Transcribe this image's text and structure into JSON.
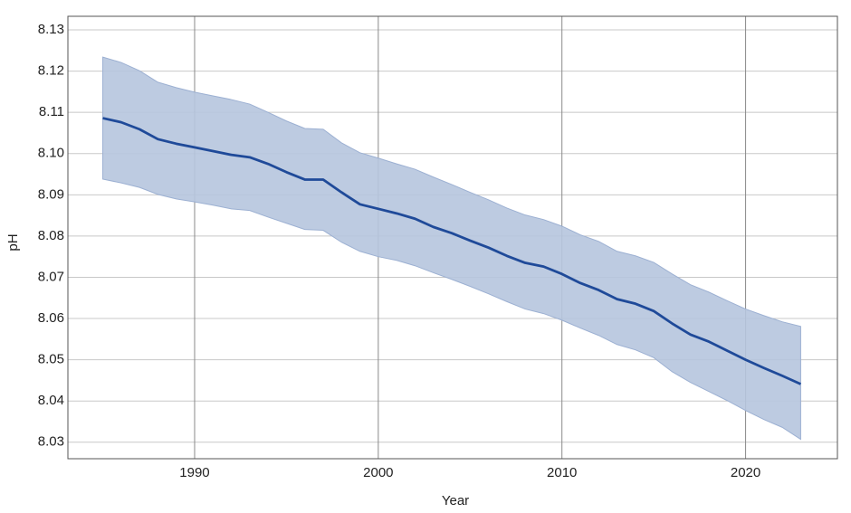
{
  "chart_data": {
    "type": "line",
    "x_label": "Year",
    "y_label": "pH",
    "x": [
      1985,
      1986,
      1987,
      1988,
      1989,
      1990,
      1991,
      1992,
      1993,
      1994,
      1995,
      1996,
      1997,
      1998,
      1999,
      2000,
      2001,
      2002,
      2003,
      2004,
      2005,
      2006,
      2007,
      2008,
      2009,
      2010,
      2011,
      2012,
      2013,
      2014,
      2015,
      2016,
      2017,
      2018,
      2019,
      2020,
      2021,
      2022,
      2023
    ],
    "values": [
      8.1086,
      8.1076,
      8.1059,
      8.1035,
      8.1024,
      8.1015,
      8.1006,
      8.0997,
      8.0991,
      8.0975,
      8.0955,
      8.0937,
      8.0937,
      8.0906,
      8.0877,
      8.0866,
      8.0855,
      8.0842,
      8.0822,
      8.0807,
      8.0789,
      8.0772,
      8.0752,
      8.0735,
      8.0726,
      8.0708,
      8.0686,
      8.0669,
      8.0647,
      8.0636,
      8.0618,
      8.0588,
      8.0561,
      8.0544,
      8.0522,
      8.05,
      8.048,
      8.0461,
      8.0441
    ],
    "upper": [
      8.1234,
      8.1221,
      8.1201,
      8.1173,
      8.116,
      8.1149,
      8.114,
      8.1131,
      8.112,
      8.11,
      8.1079,
      8.1061,
      8.1059,
      8.1026,
      8.1002,
      8.0989,
      8.0975,
      8.0962,
      8.0943,
      8.0925,
      8.0906,
      8.0888,
      8.0868,
      8.0851,
      8.084,
      8.0824,
      8.0803,
      8.0787,
      8.0763,
      8.0752,
      8.0736,
      8.0708,
      8.0682,
      8.0664,
      8.0643,
      8.0623,
      8.0607,
      8.0592,
      8.0581
    ],
    "lower": [
      8.0938,
      8.0929,
      8.0918,
      8.0901,
      8.089,
      8.0883,
      8.0875,
      8.0866,
      8.0862,
      8.0846,
      8.0831,
      8.0816,
      8.0814,
      8.0785,
      8.0763,
      8.075,
      8.0741,
      8.0728,
      8.0711,
      8.0695,
      8.0678,
      8.066,
      8.0641,
      8.0623,
      8.0612,
      8.0596,
      8.0577,
      8.0559,
      8.0537,
      8.0524,
      8.0505,
      8.0471,
      8.0445,
      8.0423,
      8.0401,
      8.0377,
      8.0355,
      8.0336,
      8.0307
    ],
    "color": "#1f4a99",
    "band_color": "#b6c5de",
    "xlim": [
      1983.1,
      2025
    ],
    "ylim": [
      8.026,
      8.1333
    ],
    "xticks": [
      1990,
      2000,
      2010,
      2020
    ],
    "yticks": [
      8.03,
      8.04,
      8.05,
      8.06,
      8.07,
      8.08,
      8.09,
      {
        "value": 8.1,
        "label": "8.10"
      },
      8.11,
      8.12,
      8.13
    ],
    "grid": true
  }
}
